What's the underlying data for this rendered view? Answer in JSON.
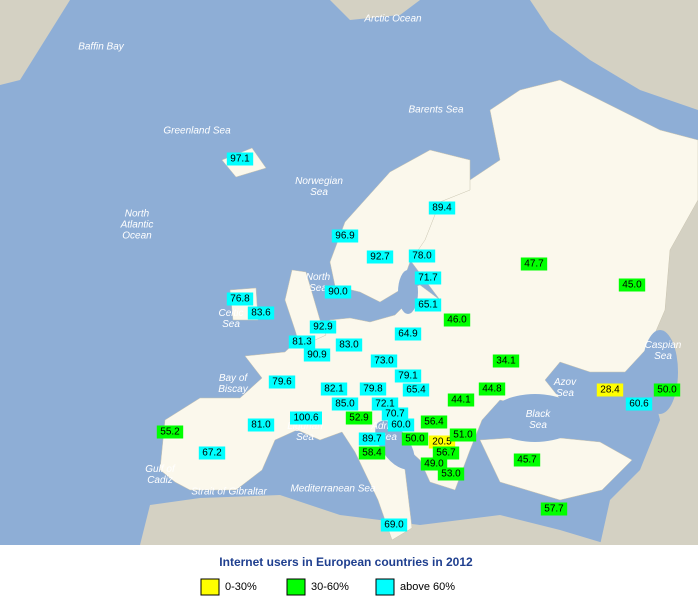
{
  "title": "Internet users in European countries in 2012",
  "legend": [
    {
      "label": "0-30%",
      "min": 0,
      "max": 30,
      "color": "#ffff00"
    },
    {
      "label": "30-60%",
      "min": 30,
      "max": 60,
      "color": "#00ff00"
    },
    {
      "label": "above 60%",
      "min": 60,
      "color": "#00ffff"
    }
  ],
  "sea_labels": [
    {
      "lines": [
        "Arctic Ocean"
      ]
    },
    {
      "lines": [
        "Baffin Bay"
      ]
    },
    {
      "lines": [
        "Greenland Sea"
      ]
    },
    {
      "lines": [
        "Barents Sea"
      ]
    },
    {
      "lines": [
        "Norwegian",
        "Sea"
      ]
    },
    {
      "lines": [
        "North",
        "Atlantic",
        "Ocean"
      ]
    },
    {
      "lines": [
        "North",
        "Sea"
      ]
    },
    {
      "lines": [
        "Celtic",
        "Sea"
      ]
    },
    {
      "lines": [
        "Bay of",
        "Biscay"
      ]
    },
    {
      "lines": [
        "Ligurian",
        "Sea"
      ]
    },
    {
      "lines": [
        "Adriatic",
        "Sea"
      ]
    },
    {
      "lines": [
        "Black",
        "Sea"
      ]
    },
    {
      "lines": [
        "Azov",
        "Sea"
      ]
    },
    {
      "lines": [
        "Caspian",
        "Sea"
      ]
    },
    {
      "lines": [
        "Mediterranean Sea"
      ]
    },
    {
      "lines": [
        "Gulf of",
        "Cadiz"
      ]
    },
    {
      "lines": [
        "Strait of Gibraltar"
      ]
    }
  ],
  "values": [
    97.1,
    89.4,
    96.9,
    92.7,
    78.0,
    47.7,
    71.7,
    90.0,
    45.0,
    76.8,
    83.6,
    65.1,
    46.0,
    92.9,
    64.9,
    81.3,
    83.0,
    90.9,
    73.0,
    34.1,
    79.1,
    79.6,
    82.1,
    79.8,
    65.4,
    44.8,
    28.4,
    50.0,
    85.0,
    72.1,
    44.1,
    60.6,
    100.6,
    52.9,
    70.7,
    60.0,
    56.4,
    81.0,
    55.2,
    89.7,
    50.0,
    20.5,
    51.0,
    56.7,
    67.2,
    58.4,
    49.0,
    45.7,
    53.0,
    57.7,
    69.0
  ],
  "value_labels": [
    "97.1",
    "89.4",
    "96.9",
    "92.7",
    "78.0",
    "47.7",
    "71.7",
    "90.0",
    "45.0",
    "76.8",
    "83.6",
    "65.1",
    "46.0",
    "92.9",
    "64.9",
    "81.3",
    "83.0",
    "90.9",
    "73.0",
    "34.1",
    "79.1",
    "79.6",
    "82.1",
    "79.8",
    "65.4",
    "44.8",
    "28.4",
    "50.0",
    "85.0",
    "72.1",
    "44.1",
    "60.6",
    "100.6",
    "52.9",
    "70.7",
    "60.0",
    "56.4",
    "81.0",
    "55.2",
    "89.7",
    "50.0",
    "20.5",
    "51.0",
    "56.7",
    "67.2",
    "58.4",
    "49.0",
    "45.7",
    "53.0",
    "57.7",
    "69.0"
  ]
}
